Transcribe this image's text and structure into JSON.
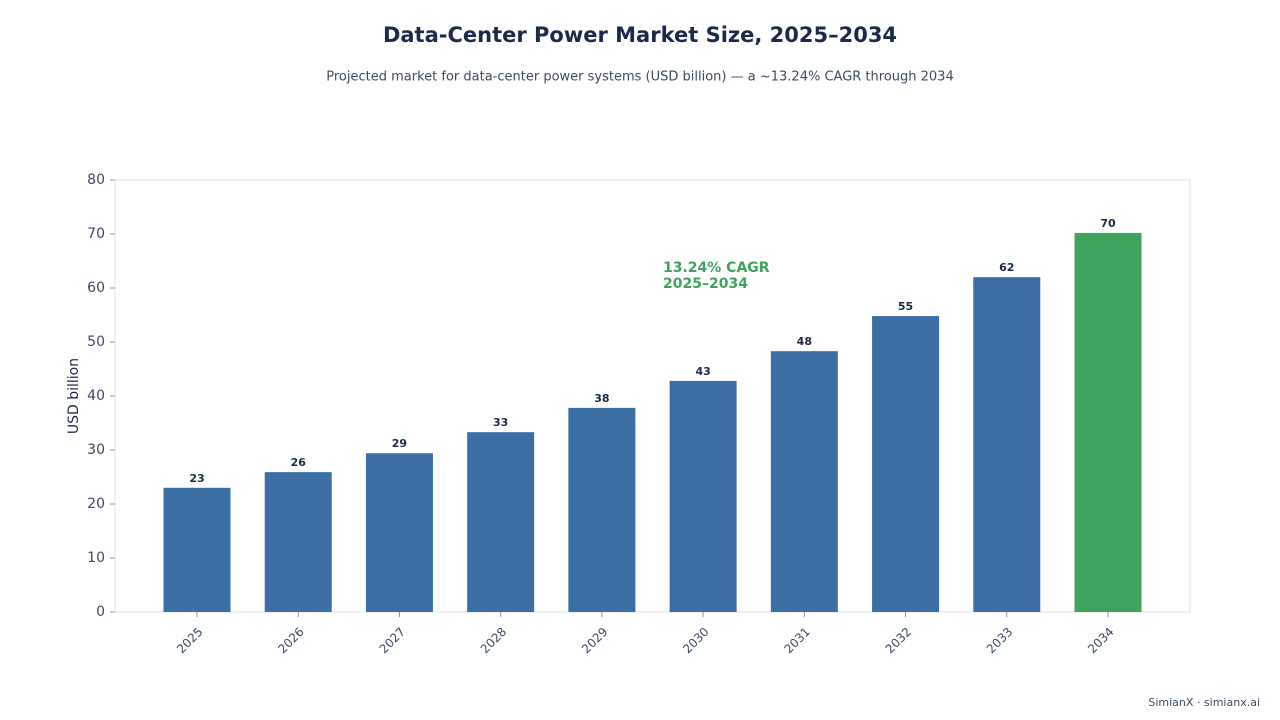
{
  "chart_data": {
    "type": "bar",
    "title": "Data-Center Power Market Size, 2025–2034",
    "subtitle": "Projected market for data-center power systems (USD billion) — a ~13.24% CAGR through 2034",
    "y_label": "USD billion",
    "categories": [
      "2025",
      "2026",
      "2027",
      "2028",
      "2029",
      "2030",
      "2031",
      "2032",
      "2033",
      "2034"
    ],
    "values": [
      23.0,
      25.9,
      29.4,
      33.3,
      37.8,
      42.8,
      48.3,
      54.8,
      62.0,
      70.2
    ],
    "value_labels": [
      "23",
      "26",
      "29",
      "33",
      "38",
      "43",
      "48",
      "55",
      "62",
      "70"
    ],
    "colors": [
      "#3a6ea5",
      "#3a6ea5",
      "#3a6ea5",
      "#3a6ea5",
      "#3a6ea5",
      "#3a6ea5",
      "#3a6ea5",
      "#3a6ea5",
      "#3a6ea5",
      "#3fa35c"
    ],
    "ylim": [
      0,
      80
    ],
    "yticks": [
      0,
      10,
      20,
      30,
      40,
      50,
      60,
      70,
      80
    ],
    "grid": false,
    "annotation": [
      "13.24% CAGR",
      "2025–2034"
    ],
    "footer": "SimianX · simianx.ai"
  }
}
